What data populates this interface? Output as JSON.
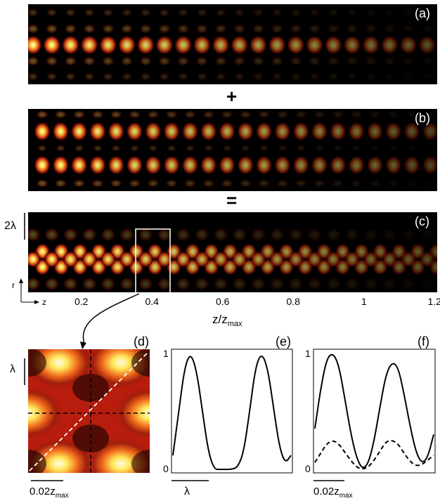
{
  "panels": {
    "a": {
      "label": "(a)"
    },
    "b": {
      "label": "(b)"
    },
    "c": {
      "label": "(c)"
    },
    "d": {
      "label": "(d)"
    },
    "e": {
      "label": "(e)"
    },
    "f": {
      "label": "(f)"
    }
  },
  "operators": {
    "plus": "+",
    "equals": "="
  },
  "panel_c": {
    "scale_label": "2λ",
    "r_axis": "r",
    "z_axis": "z",
    "xaxis_ticks": [
      "0.2",
      "0.4",
      "0.6",
      "0.8",
      "1",
      "1.2"
    ],
    "xlabel_main": "z/z",
    "xlabel_sub": "max"
  },
  "panel_d": {
    "scale_label": "λ",
    "bottom_label_main": "0.02z",
    "bottom_label_sub": "max"
  },
  "panel_e": {
    "y_top": "1",
    "y_bottom": "0",
    "bottom_label": "λ"
  },
  "panel_f": {
    "y_top": "1",
    "y_bottom": "0",
    "bottom_label_main": "0.02z",
    "bottom_label_sub": "max"
  },
  "colors": {
    "background": "#000000",
    "hot": "#ffe24a",
    "mid": "#d8281a",
    "frame": "#ffffff"
  },
  "chart_data": [
    {
      "type": "line",
      "panel": "e",
      "ylim": [
        0,
        1
      ],
      "series": [
        {
          "x": [
            0,
            0.05,
            0.1,
            0.15,
            0.2,
            0.25,
            0.3,
            0.35,
            0.4,
            0.45,
            0.5,
            0.55,
            0.6,
            0.65,
            0.7,
            0.75,
            0.8,
            0.85,
            0.9,
            0.95,
            1
          ],
          "values": [
            0.12,
            0.5,
            0.88,
            1.0,
            0.85,
            0.5,
            0.15,
            0.0,
            0.0,
            0.0,
            0.0,
            0.02,
            0.15,
            0.5,
            0.88,
            1.0,
            0.88,
            0.55,
            0.2,
            0.05,
            0.12
          ]
        }
      ]
    },
    {
      "type": "line",
      "panel": "f",
      "ylim": [
        0,
        1
      ],
      "series": [
        {
          "x": [
            0,
            0.05,
            0.1,
            0.15,
            0.2,
            0.25,
            0.3,
            0.35,
            0.4,
            0.45,
            0.5,
            0.55,
            0.6,
            0.65,
            0.7,
            0.75,
            0.8,
            0.85,
            0.9,
            0.95,
            1
          ],
          "values": [
            0.35,
            0.7,
            0.95,
            1.0,
            0.9,
            0.62,
            0.32,
            0.1,
            0.0,
            0.05,
            0.25,
            0.55,
            0.82,
            0.92,
            0.88,
            0.65,
            0.38,
            0.15,
            0.05,
            0.1,
            0.3
          ]
        },
        {
          "x": [
            0,
            0.05,
            0.1,
            0.15,
            0.2,
            0.25,
            0.3,
            0.35,
            0.4,
            0.45,
            0.5,
            0.55,
            0.6,
            0.65,
            0.7,
            0.75,
            0.8,
            0.85,
            0.9,
            0.95,
            1
          ],
          "values": [
            0.06,
            0.14,
            0.22,
            0.25,
            0.22,
            0.15,
            0.08,
            0.02,
            0.0,
            0.02,
            0.08,
            0.16,
            0.24,
            0.25,
            0.22,
            0.14,
            0.07,
            0.03,
            0.04,
            0.08,
            0.12
          ]
        }
      ]
    }
  ]
}
